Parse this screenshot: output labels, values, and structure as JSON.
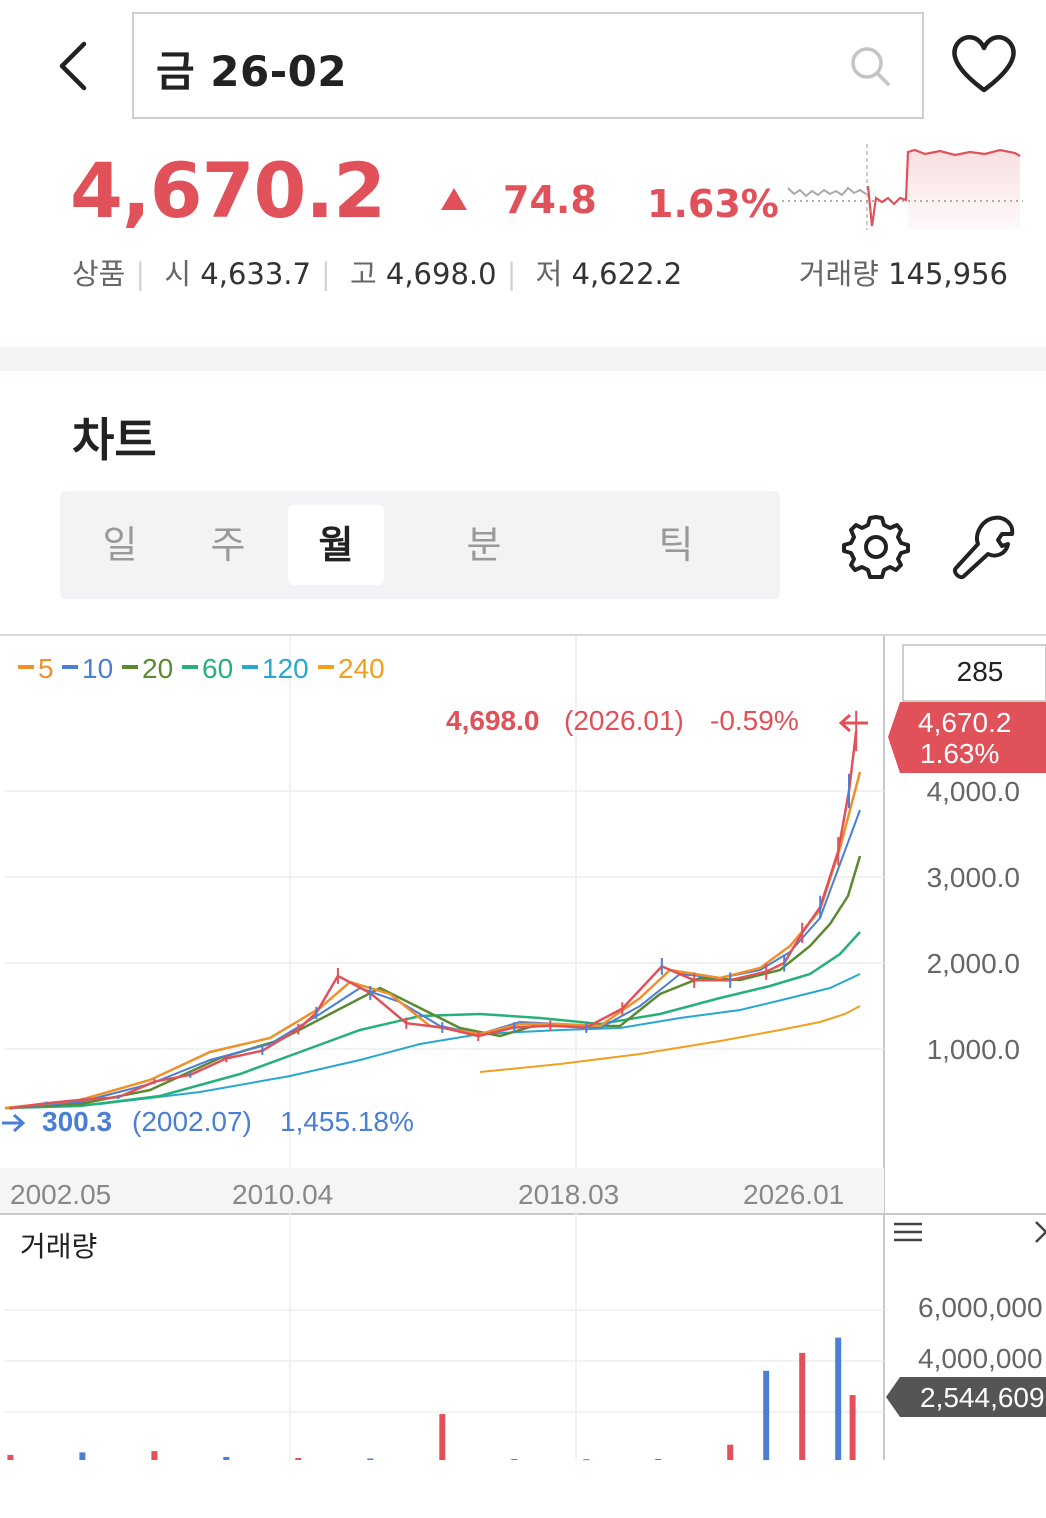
{
  "header": {
    "search_query": "금 26-02",
    "back_icon": "chevron-left-icon",
    "search_icon": "search-icon",
    "favorite_icon": "heart-icon"
  },
  "quote": {
    "price": "4,670.2",
    "change": "74.8",
    "change_pct": "1.63%",
    "direction": "up",
    "color_up": "#e0515a",
    "type_label": "상품",
    "open_label": "시",
    "open": "4,633.7",
    "high_label": "고",
    "high": "4,698.0",
    "low_label": "저",
    "low": "4,622.2",
    "volume_label": "거래량",
    "volume": "145,956"
  },
  "chart_section": {
    "title": "차트",
    "tabs": [
      {
        "label": "일",
        "active": false
      },
      {
        "label": "주",
        "active": false
      },
      {
        "label": "월",
        "active": true
      },
      {
        "label": "분",
        "active": false
      },
      {
        "label": "틱",
        "active": false
      }
    ],
    "settings_icon": "gear-icon",
    "tools_icon": "wrench-icon"
  },
  "price_chart": {
    "ma_legend": [
      {
        "label": "5",
        "color": "#f0902a"
      },
      {
        "label": "10",
        "color": "#4a7fd4"
      },
      {
        "label": "20",
        "color": "#5b8a32"
      },
      {
        "label": "60",
        "color": "#27b07a"
      },
      {
        "label": "120",
        "color": "#28a7d0"
      },
      {
        "label": "240",
        "color": "#f0a020"
      }
    ],
    "high_marker": {
      "value": "4,698.0",
      "date": "(2026.01)",
      "pct": "-0.59%"
    },
    "low_marker": {
      "value": "300.3",
      "date": "(2002.07)",
      "pct": "1,455.18%"
    },
    "count_box": "285",
    "current_tag": {
      "value": "4,670.2",
      "pct": "1.63%"
    },
    "y_ticks": [
      "4,000.0",
      "3,000.0",
      "2,000.0",
      "1,000.0"
    ],
    "x_ticks": [
      "2002.05",
      "2010.04",
      "2018.03",
      "2026.01"
    ]
  },
  "volume_chart": {
    "title": "거래량",
    "menu_icon": "hamburger-icon",
    "close_icon": "close-icon",
    "y_ticks": [
      "6,000,000",
      "4,000,000"
    ],
    "current_tag": "2,544,609"
  },
  "chart_data": [
    {
      "type": "line",
      "title": "",
      "x_range": [
        "2002.05",
        "2026.01"
      ],
      "x_ticks": [
        "2002.05",
        "2010.04",
        "2018.03",
        "2026.01"
      ],
      "y_ticks": [
        "1,000.0",
        "2,000.0",
        "3,000.0",
        "4,000.0"
      ],
      "series": [
        {
          "name": "",
          "color": "#e0515a",
          "x": [
            2002.5,
            2003.5,
            2004.5,
            2005.5,
            2006.5,
            2007.5,
            2008.5,
            2009.5,
            2010.5,
            2011.0,
            2011.6,
            2012.5,
            2013.5,
            2014.5,
            2015.5,
            2016.5,
            2017.5,
            2018.5,
            2019.5,
            2020.6,
            2021.5,
            2022.5,
            2023.5,
            2024.0,
            2024.5,
            2025.0,
            2025.5,
            2025.8,
            2026.0
          ],
          "y": [
            310,
            370,
            410,
            440,
            620,
            700,
            890,
            980,
            1230,
            1420,
            1850,
            1650,
            1300,
            1250,
            1150,
            1250,
            1270,
            1250,
            1470,
            1960,
            1800,
            1800,
            1900,
            2000,
            2350,
            2650,
            3300,
            4000,
            4698
          ]
        },
        {
          "name": "5",
          "color": "#f0902a"
        },
        {
          "name": "10",
          "color": "#4a7fd4"
        },
        {
          "name": "20",
          "color": "#5b8a32"
        },
        {
          "name": "60",
          "color": "#27b07a"
        },
        {
          "name": "120",
          "color": "#28a7d0"
        },
        {
          "name": "240",
          "color": "#f0a020"
        }
      ]
    },
    {
      "type": "bar",
      "title": "거래량",
      "y_ticks": [
        "4,000,000",
        "6,000,000"
      ],
      "series": [
        {
          "name": "",
          "x": [
            2002.5,
            2004.5,
            2006.5,
            2008.5,
            2010.5,
            2012.5,
            2014.5,
            2016.5,
            2018.5,
            2020.5,
            2022.5,
            2023.5,
            2024.5,
            2025.5,
            2025.9
          ],
          "y": [
            200000,
            300000,
            350000,
            120000,
            80000,
            60000,
            1800000,
            40000,
            30000,
            40000,
            600000,
            3500000,
            4200000,
            4800000,
            2544609
          ]
        }
      ]
    }
  ]
}
